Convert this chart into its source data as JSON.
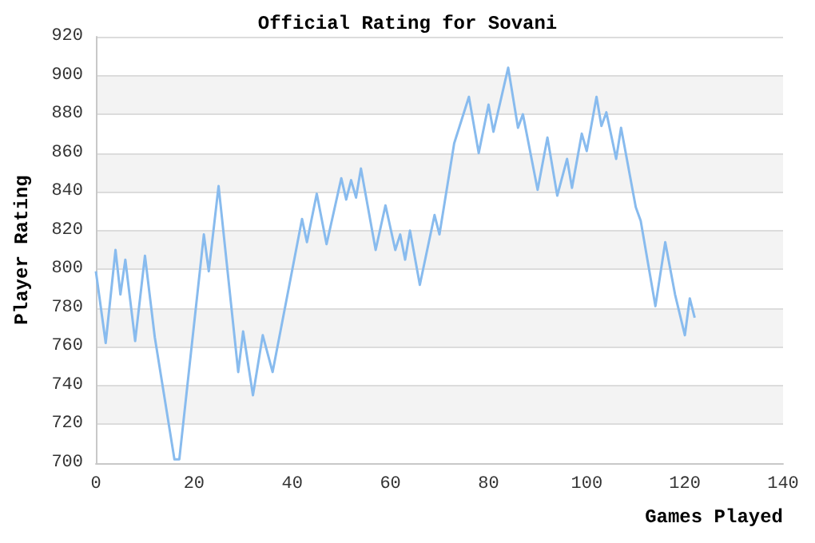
{
  "chart_data": {
    "type": "line",
    "title": "Official Rating for Sovani",
    "xlabel": "Games Played",
    "ylabel": "Player Rating",
    "x": [
      0,
      2,
      4,
      5,
      6,
      8,
      10,
      12,
      16,
      17,
      22,
      23,
      25,
      29,
      30,
      32,
      34,
      36,
      42,
      43,
      45,
      47,
      50,
      51,
      52,
      53,
      54,
      57,
      59,
      61,
      62,
      63,
      64,
      66,
      69,
      70,
      73,
      76,
      78,
      80,
      81,
      84,
      86,
      87,
      90,
      92,
      94,
      96,
      97,
      99,
      100,
      102,
      103,
      104,
      106,
      107,
      110,
      111,
      114,
      116,
      118,
      120,
      121,
      122
    ],
    "series": [
      {
        "color": "#88bbee",
        "values": [
          799,
          762,
          810,
          787,
          805,
          763,
          807,
          765,
          702,
          702,
          818,
          799,
          843,
          747,
          768,
          735,
          766,
          747,
          826,
          814,
          839,
          813,
          847,
          836,
          846,
          837,
          852,
          810,
          833,
          810,
          818,
          805,
          820,
          792,
          828,
          818,
          865,
          889,
          860,
          885,
          871,
          904,
          873,
          880,
          841,
          868,
          838,
          857,
          842,
          870,
          861,
          889,
          874,
          881,
          857,
          873,
          832,
          825,
          781,
          814,
          787,
          766,
          785,
          775
        ]
      }
    ],
    "xlim": [
      0,
      140
    ],
    "xticks": [
      0,
      20,
      40,
      60,
      80,
      100,
      120,
      140
    ],
    "ylim": [
      700,
      920
    ],
    "yticks": [
      700,
      720,
      740,
      760,
      780,
      800,
      820,
      840,
      860,
      880,
      900,
      920
    ],
    "grid": "y",
    "marker": "none",
    "line_style": "solid"
  }
}
